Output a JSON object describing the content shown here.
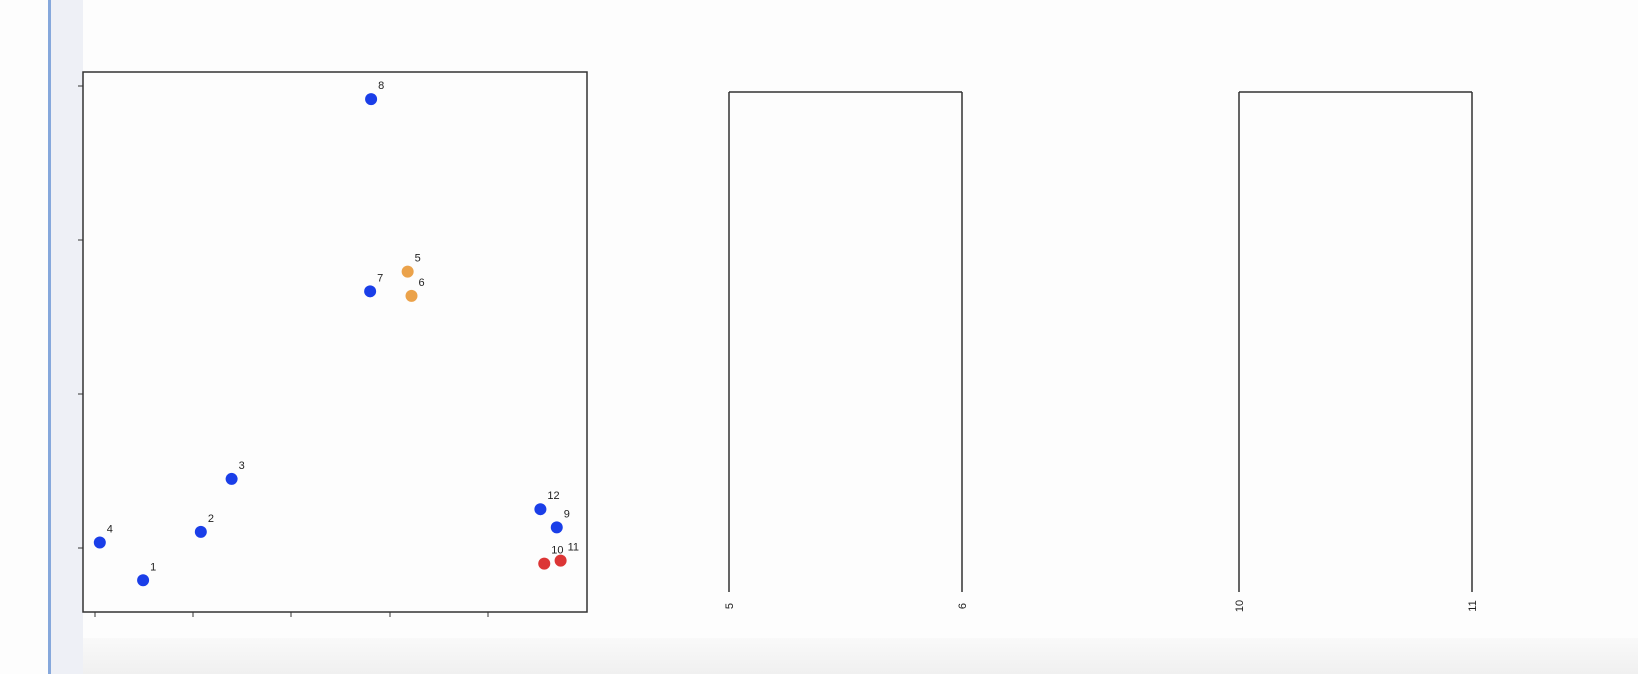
{
  "chart_data": [
    {
      "type": "scatter",
      "title": "",
      "xlabel": "",
      "ylabel": "",
      "xlim": [
        0.0,
        5.0
      ],
      "ylim": [
        0.0,
        3.45
      ],
      "grid": false,
      "points": [
        {
          "label": "1",
          "x": 0.5,
          "y": 0.15,
          "color": "#1a3ee8"
        },
        {
          "label": "2",
          "x": 1.1,
          "y": 0.47,
          "color": "#1a3ee8"
        },
        {
          "label": "3",
          "x": 1.42,
          "y": 0.82,
          "color": "#1a3ee8"
        },
        {
          "label": "4",
          "x": 0.05,
          "y": 0.4,
          "color": "#1a3ee8"
        },
        {
          "label": "5",
          "x": 3.25,
          "y": 2.19,
          "color": "#eba24a"
        },
        {
          "label": "6",
          "x": 3.29,
          "y": 2.03,
          "color": "#eba24a"
        },
        {
          "label": "7",
          "x": 2.86,
          "y": 2.06,
          "color": "#1a3ee8"
        },
        {
          "label": "8",
          "x": 2.87,
          "y": 3.33,
          "color": "#1a3ee8"
        },
        {
          "label": "9",
          "x": 4.8,
          "y": 0.5,
          "color": "#1a3ee8"
        },
        {
          "label": "10",
          "x": 4.67,
          "y": 0.26,
          "color": "#dc3535"
        },
        {
          "label": "11",
          "x": 4.84,
          "y": 0.28,
          "color": "#dc3535"
        },
        {
          "label": "12",
          "x": 4.63,
          "y": 0.62,
          "color": "#1a3ee8"
        }
      ]
    },
    {
      "type": "dendrogram",
      "leaves": [
        "5",
        "6"
      ],
      "merge_height": 1.0
    },
    {
      "type": "dendrogram",
      "leaves": [
        "10",
        "11"
      ],
      "merge_height": 1.0
    }
  ]
}
